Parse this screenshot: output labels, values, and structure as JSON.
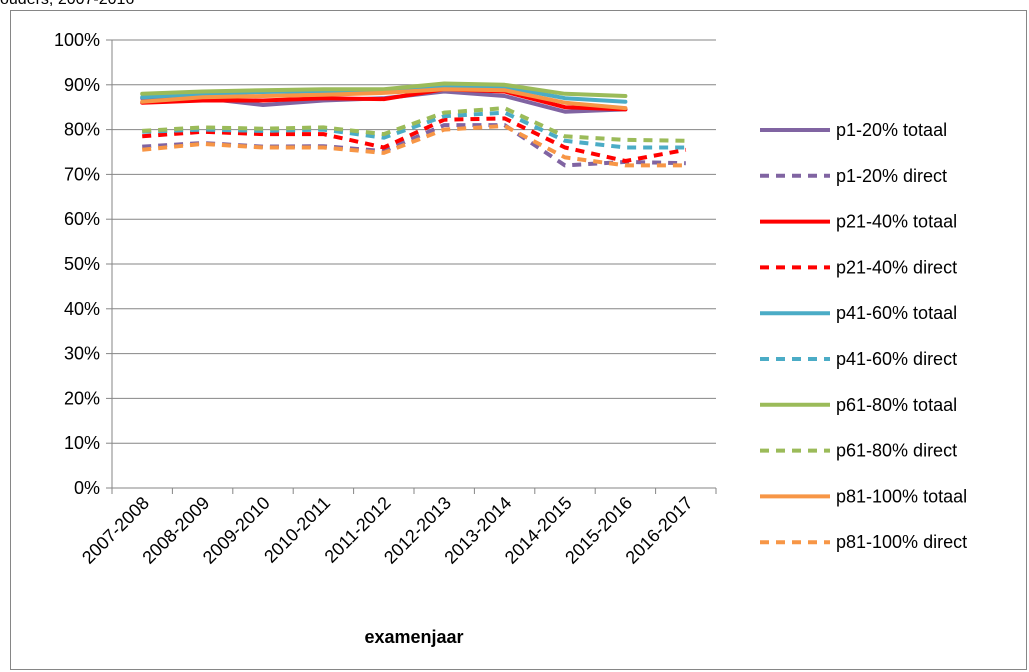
{
  "page": {
    "title_fragment": "ouders, 2007-2016"
  },
  "chart_data": {
    "type": "line",
    "title": "",
    "xlabel": "examenjaar",
    "ylabel": "",
    "categories": [
      "2007-2008",
      "2008-2009",
      "2009-2010",
      "2010-2011",
      "2011-2012",
      "2012-2013",
      "2013-2014",
      "2014-2015",
      "2015-2016",
      "2016-2017"
    ],
    "ylim": [
      0,
      1
    ],
    "yticks": [
      0,
      0.1,
      0.2,
      0.3,
      0.4,
      0.5,
      0.6,
      0.7,
      0.8,
      0.9,
      1.0
    ],
    "ytick_labels": [
      "0%",
      "10%",
      "20%",
      "30%",
      "40%",
      "50%",
      "60%",
      "70%",
      "80%",
      "90%",
      "100%"
    ],
    "grid": true,
    "legend_position": "right",
    "series": [
      {
        "name": "p1-20% totaal",
        "color": "#8064A2",
        "dash": false,
        "values": [
          0.87,
          0.87,
          0.855,
          0.865,
          0.87,
          0.885,
          0.875,
          0.84,
          0.845,
          null
        ]
      },
      {
        "name": "p1-20% direct",
        "color": "#8064A2",
        "dash": true,
        "values": [
          0.762,
          0.77,
          0.762,
          0.763,
          0.752,
          0.81,
          0.81,
          0.72,
          0.728,
          0.725
        ]
      },
      {
        "name": "p21-40% totaal",
        "color": "#FF0000",
        "dash": false,
        "values": [
          0.86,
          0.865,
          0.865,
          0.87,
          0.868,
          0.89,
          0.885,
          0.85,
          0.845,
          null
        ]
      },
      {
        "name": "p21-40% direct",
        "color": "#FF0000",
        "dash": true,
        "values": [
          0.785,
          0.795,
          0.79,
          0.79,
          0.76,
          0.822,
          0.825,
          0.76,
          0.73,
          0.755
        ]
      },
      {
        "name": "p41-60% totaal",
        "color": "#4BACC6",
        "dash": false,
        "values": [
          0.872,
          0.88,
          0.884,
          0.886,
          0.885,
          0.895,
          0.895,
          0.87,
          0.862,
          null
        ]
      },
      {
        "name": "p41-60% direct",
        "color": "#4BACC6",
        "dash": true,
        "values": [
          0.795,
          0.8,
          0.797,
          0.8,
          0.782,
          0.83,
          0.838,
          0.775,
          0.76,
          0.76
        ]
      },
      {
        "name": "p61-80% totaal",
        "color": "#9BBB59",
        "dash": false,
        "values": [
          0.88,
          0.885,
          0.888,
          0.89,
          0.89,
          0.903,
          0.9,
          0.88,
          0.875,
          null
        ]
      },
      {
        "name": "p61-80% direct",
        "color": "#9BBB59",
        "dash": true,
        "values": [
          0.797,
          0.805,
          0.802,
          0.805,
          0.79,
          0.838,
          0.848,
          0.785,
          0.777,
          0.775
        ]
      },
      {
        "name": "p81-100% totaal",
        "color": "#F79646",
        "dash": false,
        "values": [
          0.862,
          0.872,
          0.875,
          0.878,
          0.882,
          0.89,
          0.888,
          0.86,
          0.848,
          null
        ]
      },
      {
        "name": "p81-100% direct",
        "color": "#F79646",
        "dash": true,
        "values": [
          0.755,
          0.768,
          0.76,
          0.76,
          0.748,
          0.8,
          0.808,
          0.738,
          0.72,
          0.72
        ]
      }
    ]
  }
}
